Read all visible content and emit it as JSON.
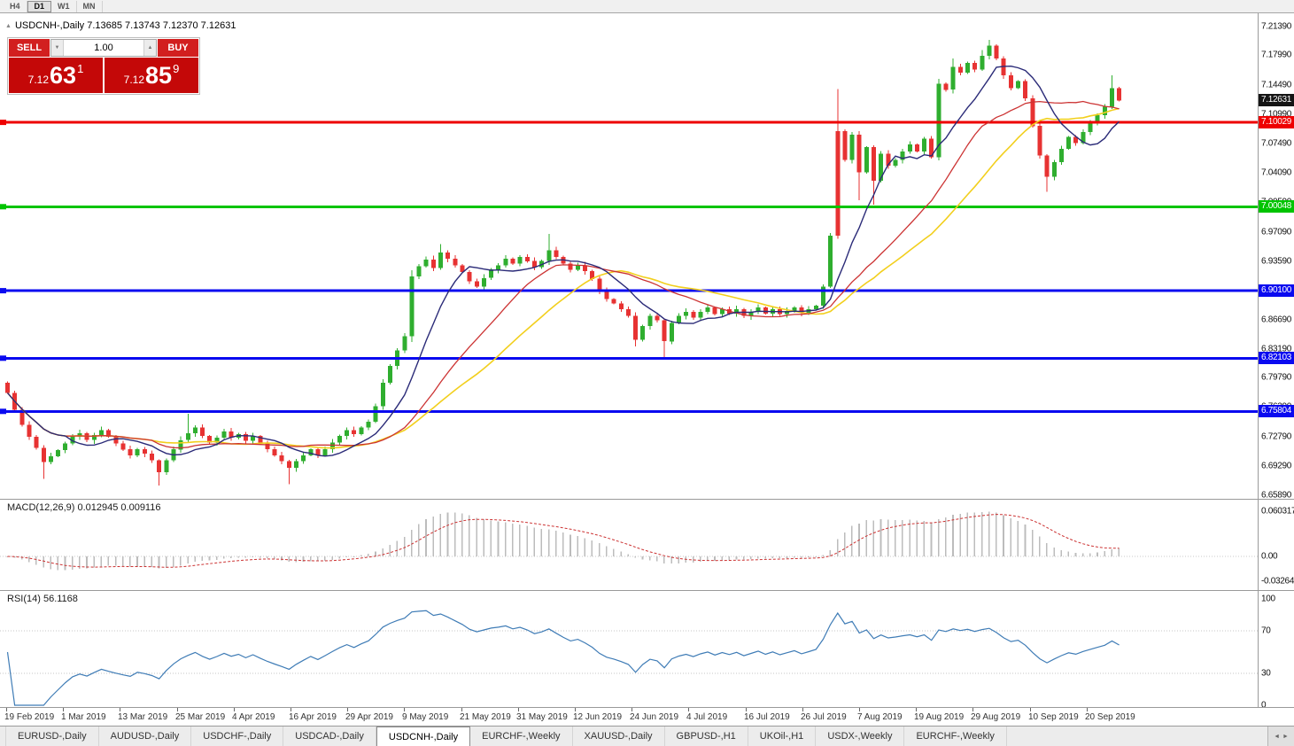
{
  "toolbar": {
    "timeframes": [
      {
        "label": "H4",
        "active": false
      },
      {
        "label": "D1",
        "active": true
      },
      {
        "label": "W1",
        "active": false
      },
      {
        "label": "MN",
        "active": false
      }
    ]
  },
  "symbol_line": {
    "icon": "▲",
    "text": "USDCNH-,Daily 7.13685 7.13743 7.12370 7.12631"
  },
  "trade_panel": {
    "sell_label": "SELL",
    "buy_label": "BUY",
    "volume": "1.00",
    "spinner_down": "▼",
    "spinner_up": "▲",
    "sell_price": {
      "prefix": "7.12",
      "big": "63",
      "sup": "1"
    },
    "buy_price": {
      "prefix": "7.12",
      "big": "85",
      "sup": "9"
    }
  },
  "indicators": {
    "macd_label": "MACD(12,26,9) 0.012945 0.009116",
    "rsi_label": "RSI(14) 56.1168"
  },
  "tab_scroll": {
    "left": "◄",
    "right": "►"
  },
  "tabs": [
    {
      "label": "EURUSD-,Daily",
      "active": false
    },
    {
      "label": "AUDUSD-,Daily",
      "active": false
    },
    {
      "label": "USDCHF-,Daily",
      "active": false
    },
    {
      "label": "USDCAD-,Daily",
      "active": false
    },
    {
      "label": "USDCNH-,Daily",
      "active": true
    },
    {
      "label": "EURCHF-,Weekly",
      "active": false
    },
    {
      "label": "XAUUSD-,Daily",
      "active": false
    },
    {
      "label": "GBPUSD-,H1",
      "active": false
    },
    {
      "label": "UKOil-,H1",
      "active": false
    },
    {
      "label": "USDX-,Weekly",
      "active": false
    },
    {
      "label": "EURCHF-,Weekly",
      "active": false
    }
  ],
  "chart_data": {
    "type": "candlestick",
    "symbol": "USDCNH",
    "timeframe": "Daily",
    "title": "USDCNH-,Daily",
    "price_range": [
      6.6545,
      7.2295
    ],
    "price_axis_ticks": [
      "7.21390",
      "7.17990",
      "7.14490",
      "7.10990",
      "7.07490",
      "7.04090",
      "7.00590",
      "6.97090",
      "6.93590",
      "6.90090",
      "6.86690",
      "6.83190",
      "6.79790",
      "6.76390",
      "6.72790",
      "6.69290",
      "6.65890"
    ],
    "dates": [
      "19 Feb 2019",
      "1 Mar 2019",
      "13 Mar 2019",
      "25 Mar 2019",
      "4 Apr 2019",
      "16 Apr 2019",
      "29 Apr 2019",
      "9 May 2019",
      "21 May 2019",
      "31 May 2019",
      "12 Jun 2019",
      "24 Jun 2019",
      "4 Jul 2019",
      "16 Jul 2019",
      "26 Jul 2019",
      "7 Aug 2019",
      "19 Aug 2019",
      "29 Aug 2019",
      "10 Sep 2019",
      "20 Sep 2019"
    ],
    "first_open": 6.792,
    "closes": [
      6.78,
      6.76,
      6.742,
      6.728,
      6.715,
      6.698,
      6.705,
      6.712,
      6.72,
      6.728,
      6.732,
      6.724,
      6.73,
      6.736,
      6.728,
      6.72,
      6.713,
      6.706,
      6.713,
      6.708,
      6.7,
      6.686,
      6.7,
      6.713,
      6.724,
      6.732,
      6.739,
      6.729,
      6.721,
      6.727,
      6.734,
      6.727,
      6.731,
      6.723,
      6.729,
      6.721,
      6.713,
      6.706,
      6.699,
      6.691,
      6.699,
      6.706,
      6.713,
      6.706,
      6.713,
      6.721,
      6.729,
      6.736,
      6.731,
      6.739,
      6.746,
      6.764,
      6.792,
      6.812,
      6.83,
      6.847,
      6.918,
      6.93,
      6.938,
      6.928,
      6.946,
      6.939,
      6.931,
      6.923,
      6.912,
      6.906,
      6.916,
      6.926,
      6.931,
      6.939,
      6.933,
      6.941,
      6.936,
      6.929,
      6.936,
      6.949,
      6.941,
      6.933,
      6.926,
      6.931,
      6.924,
      6.915,
      6.901,
      6.891,
      6.886,
      6.879,
      6.871,
      6.843,
      6.859,
      6.871,
      6.866,
      6.841,
      6.863,
      6.871,
      6.876,
      6.869,
      6.876,
      6.881,
      6.873,
      6.879,
      6.874,
      6.879,
      6.871,
      6.876,
      6.881,
      6.874,
      6.879,
      6.873,
      6.877,
      6.881,
      6.875,
      6.879,
      6.883,
      6.906,
      6.966,
      7.09,
      7.056,
      7.086,
      7.041,
      7.071,
      7.031,
      7.063,
      7.049,
      7.056,
      7.066,
      7.074,
      7.066,
      7.081,
      7.059,
      7.146,
      7.139,
      7.166,
      7.159,
      7.171,
      7.163,
      7.179,
      7.191,
      7.176,
      7.156,
      7.141,
      7.149,
      7.129,
      7.096,
      7.061,
      7.036,
      7.053,
      7.069,
      7.083,
      7.076,
      7.089,
      7.099,
      7.109,
      7.119,
      7.141,
      7.12631
    ],
    "overrides": {
      "5": {
        "l": 6.678
      },
      "21": {
        "l": 6.67
      },
      "25": {
        "h": 6.755
      },
      "39": {
        "l": 6.672
      },
      "56": {
        "h": 6.925,
        "l": 6.84
      },
      "60": {
        "h": 6.956
      },
      "75": {
        "h": 6.968
      },
      "87": {
        "l": 6.835
      },
      "91": {
        "l": 6.822
      },
      "115": {
        "h": 7.14,
        "color": "down"
      },
      "118": {
        "l": 7.008
      },
      "120": {
        "l": 7.003
      },
      "129": {
        "h": 7.152
      },
      "131": {
        "h": 7.176
      },
      "135": {
        "h": 7.186
      },
      "136": {
        "h": 7.198
      },
      "144": {
        "l": 7.018
      },
      "153": {
        "h": 7.156
      }
    },
    "ma_periods": {
      "fast": 9,
      "mid": 21,
      "slow": 30
    },
    "hlines": [
      {
        "price": 7.10029,
        "color": "#ee0000",
        "label": "7.10029"
      },
      {
        "price": 7.00048,
        "color": "#00c400",
        "label": "7.00048"
      },
      {
        "price": 6.901,
        "color": "#0a0af0",
        "label": "6.90100"
      },
      {
        "price": 6.82103,
        "color": "#0a0af0",
        "label": "6.82103"
      },
      {
        "price": 6.75804,
        "color": "#0a0af0",
        "label": "6.75804"
      }
    ],
    "current_price": {
      "price": 7.12631,
      "label": "7.12631"
    },
    "macd": {
      "params": "12,26,9",
      "values": [
        0.012945,
        0.009116
      ],
      "axis": [
        "0.060317",
        "0.00",
        "-0.032648"
      ],
      "range": [
        -0.0445,
        0.075
      ]
    },
    "rsi": {
      "params": "14",
      "value": 56.1168,
      "axis": [
        "100",
        "70",
        "30",
        "0"
      ],
      "levels": [
        70,
        30
      ],
      "range": [
        0,
        100
      ]
    },
    "colors": {
      "up": "#2fae2f",
      "down": "#e73232",
      "ma_fast": "#2b2b78",
      "ma_mid": "#cc3333",
      "ma_slow": "#f2cf1d",
      "macd_hist": "#bcbcbc",
      "macd_signal": "#cc3333",
      "rsi": "#3f7cb6"
    }
  }
}
